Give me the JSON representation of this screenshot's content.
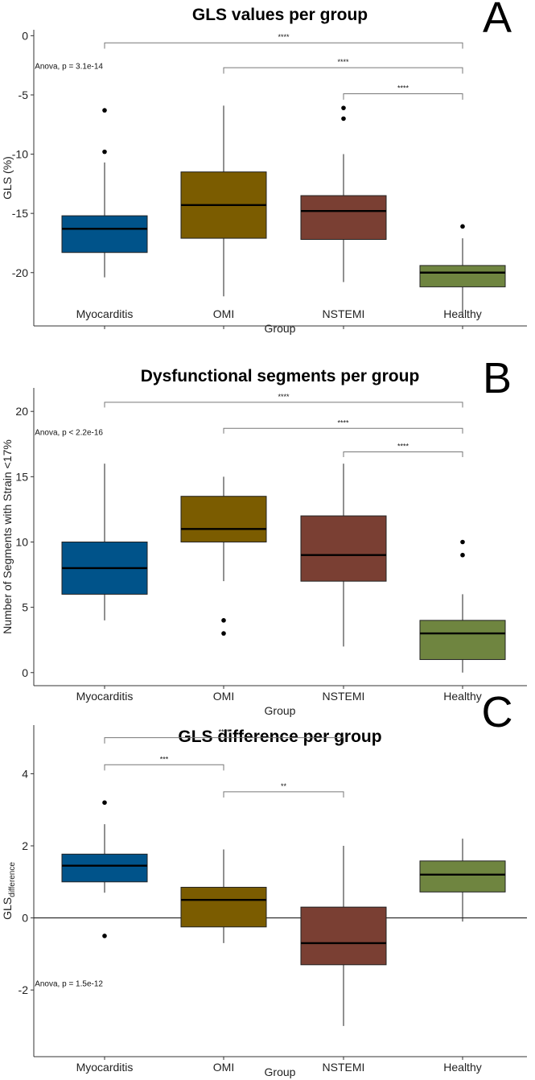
{
  "figure": {
    "panels": [
      {
        "letter": "A",
        "anova": "Anova, p = 3.1e-14",
        "anova_x": 0.7,
        "anova_y": -2.8
      },
      {
        "letter": "B",
        "anova": "Anova, p < 2.2e-16",
        "anova_x": 0.7,
        "anova_y": 18.2
      },
      {
        "letter": "C",
        "anova": "Anova, p = 1.5e-12",
        "anova_x": 0.7,
        "anova_y": -1.9
      }
    ]
  },
  "chart_data": [
    {
      "type": "boxplot",
      "title": "GLS values per group",
      "xlabel": "Group",
      "ylabel": "GLS (%)",
      "ylabel_sub": "",
      "ylim": [
        -24.5,
        0.5
      ],
      "yticks": [
        0,
        -5,
        -10,
        -15,
        -20
      ],
      "ytick_labels": [
        "0",
        "-5",
        "-10",
        "-15",
        "-20"
      ],
      "zero_line": false,
      "categories": [
        "Myocarditis",
        "OMI",
        "NSTEMI",
        "Healthy"
      ],
      "colors": [
        "#00538a",
        "#7b5c00",
        "#7a3f33",
        "#6f8540"
      ],
      "boxes": [
        {
          "whisker_low": -20.4,
          "q1": -18.3,
          "median": -16.3,
          "q3": -15.2,
          "whisker_high": -10.7,
          "outliers": [
            -6.3,
            -9.8
          ]
        },
        {
          "whisker_low": -22.0,
          "q1": -17.1,
          "median": -14.3,
          "q3": -11.5,
          "whisker_high": -5.9,
          "outliers": []
        },
        {
          "whisker_low": -20.8,
          "q1": -17.2,
          "median": -14.8,
          "q3": -13.5,
          "whisker_high": -10.0,
          "outliers": [
            -6.1,
            -7.0
          ]
        },
        {
          "whisker_low": -23.8,
          "q1": -21.2,
          "median": -20.0,
          "q3": -19.4,
          "whisker_high": -17.1,
          "outliers": [
            -16.1
          ]
        }
      ],
      "comparisons": [
        {
          "from": 0,
          "to": 3,
          "label": "****",
          "y": -0.6,
          "tip": 0.5
        },
        {
          "from": 1,
          "to": 3,
          "label": "****",
          "y": -2.7,
          "tip": 0.5
        },
        {
          "from": 2,
          "to": 3,
          "label": "****",
          "y": -4.9,
          "tip": 0.5
        }
      ]
    },
    {
      "type": "boxplot",
      "title": "Dysfunctional segments per group",
      "xlabel": "Group",
      "ylabel": "Number of Segments with Strain <17%",
      "ylabel_sub": "",
      "ylim": [
        -1.0,
        21.8
      ],
      "yticks": [
        0,
        5,
        10,
        15,
        20
      ],
      "ytick_labels": [
        "0",
        "5",
        "10",
        "15",
        "20"
      ],
      "zero_line": false,
      "categories": [
        "Myocarditis",
        "OMI",
        "NSTEMI",
        "Healthy"
      ],
      "colors": [
        "#00538a",
        "#7b5c00",
        "#7a3f33",
        "#6f8540"
      ],
      "boxes": [
        {
          "whisker_low": 4,
          "q1": 6,
          "median": 8,
          "q3": 10,
          "whisker_high": 16,
          "outliers": []
        },
        {
          "whisker_low": 7,
          "q1": 10,
          "median": 11,
          "q3": 13.5,
          "whisker_high": 15,
          "outliers": [
            4,
            3
          ]
        },
        {
          "whisker_low": 2,
          "q1": 7,
          "median": 9,
          "q3": 12,
          "whisker_high": 16,
          "outliers": []
        },
        {
          "whisker_low": 0,
          "q1": 1,
          "median": 3,
          "q3": 4,
          "whisker_high": 6,
          "outliers": [
            10,
            9
          ]
        }
      ],
      "comparisons": [
        {
          "from": 0,
          "to": 3,
          "label": "****",
          "y": 20.7,
          "tip": 0.4
        },
        {
          "from": 1,
          "to": 3,
          "label": "****",
          "y": 18.7,
          "tip": 0.4
        },
        {
          "from": 2,
          "to": 3,
          "label": "****",
          "y": 16.9,
          "tip": 0.4
        }
      ]
    },
    {
      "type": "boxplot",
      "title": "GLS difference per group",
      "xlabel": "Group",
      "ylabel": "GLS",
      "ylabel_sub": "difference",
      "ylim": [
        -3.85,
        5.35
      ],
      "yticks": [
        4,
        2,
        0,
        -2
      ],
      "ytick_labels": [
        "4",
        "2",
        "0",
        "-2"
      ],
      "zero_line": true,
      "categories": [
        "Myocarditis",
        "OMI",
        "NSTEMI",
        "Healthy"
      ],
      "colors": [
        "#00538a",
        "#7b5c00",
        "#7a3f33",
        "#6f8540"
      ],
      "boxes": [
        {
          "whisker_low": 0.7,
          "q1": 1.0,
          "median": 1.45,
          "q3": 1.77,
          "whisker_high": 2.6,
          "outliers": [
            3.2,
            -0.5
          ]
        },
        {
          "whisker_low": -0.7,
          "q1": -0.25,
          "median": 0.5,
          "q3": 0.85,
          "whisker_high": 1.9,
          "outliers": []
        },
        {
          "whisker_low": -3.0,
          "q1": -1.3,
          "median": -0.7,
          "q3": 0.3,
          "whisker_high": 2.0,
          "outliers": []
        },
        {
          "whisker_low": -0.1,
          "q1": 0.72,
          "median": 1.2,
          "q3": 1.58,
          "whisker_high": 2.2,
          "outliers": []
        }
      ],
      "comparisons": [
        {
          "from": 0,
          "to": 2,
          "label": "****",
          "y": 5.0,
          "tip": 0.16
        },
        {
          "from": 0,
          "to": 1,
          "label": "***",
          "y": 4.25,
          "tip": 0.16
        },
        {
          "from": 1,
          "to": 2,
          "label": "**",
          "y": 3.5,
          "tip": 0.16
        }
      ]
    }
  ]
}
